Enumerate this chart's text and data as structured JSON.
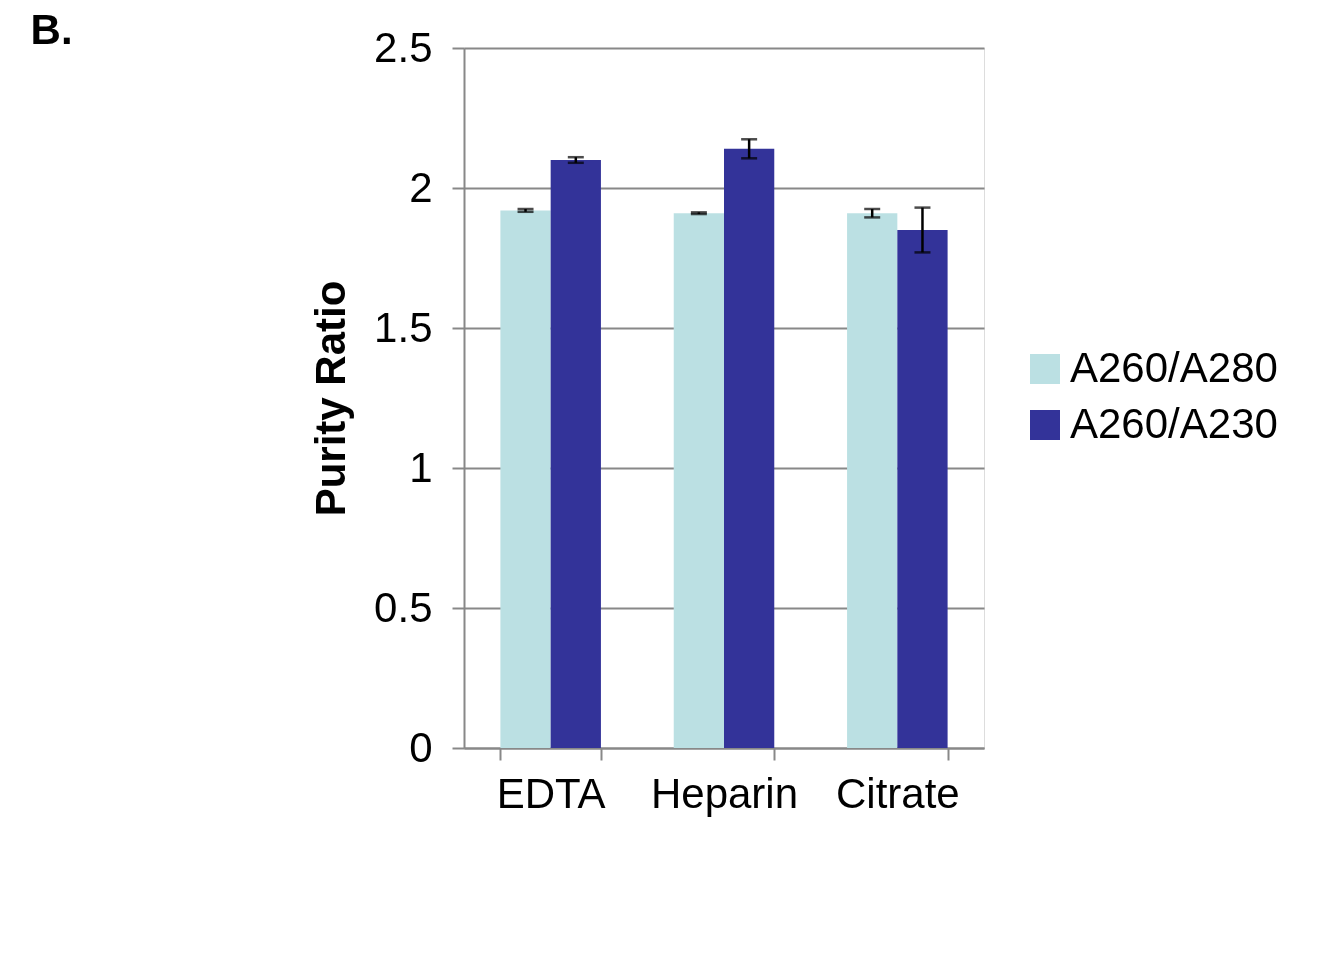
{
  "chart_data": {
    "type": "bar",
    "title": "B.",
    "ylabel": "Purity Ratio",
    "categories": [
      "EDTA",
      "Heparin",
      "Citrate"
    ],
    "series": [
      {
        "name": "A260/A280",
        "color": "#bbe0e3",
        "values": [
          1.92,
          1.91,
          1.91
        ],
        "errors": [
          0.005,
          0.003,
          0.015
        ]
      },
      {
        "name": "A260/A230",
        "color": "#333399",
        "values": [
          2.1,
          2.14,
          1.85
        ],
        "errors": [
          0.01,
          0.034,
          0.08
        ]
      }
    ],
    "ylim": [
      0,
      2.5
    ],
    "yticks": [
      {
        "value": 0,
        "label": "0"
      },
      0.5,
      {
        "value": 1,
        "label": "1"
      },
      1.5,
      {
        "value": 2,
        "label": "2"
      },
      2.5
    ],
    "grid": "y",
    "legend": "right"
  }
}
